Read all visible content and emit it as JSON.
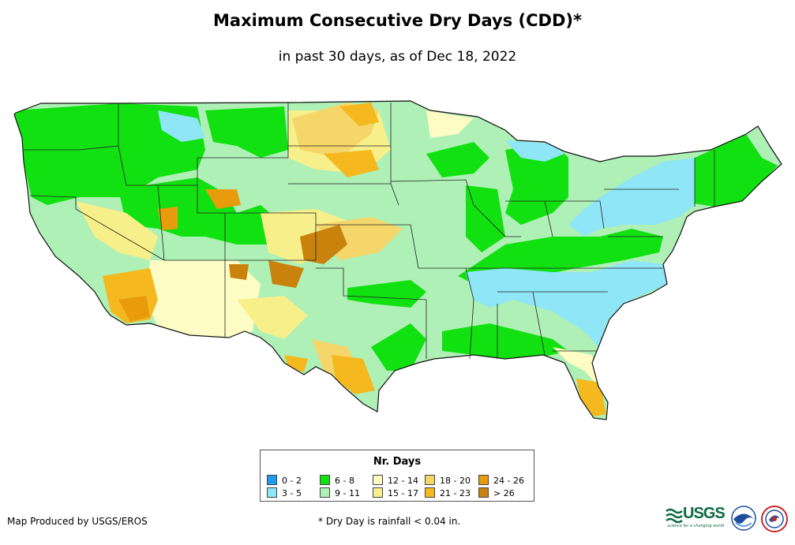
{
  "title": "Maximum Consecutive Dry Days (CDD)*",
  "subtitle": "in past 30 days, as of Dec 18, 2022",
  "legend": {
    "title": "Nr. Days",
    "classes": [
      {
        "label": "0 - 2",
        "color": "#1e9bef"
      },
      {
        "label": "3 - 5",
        "color": "#8ee6f7"
      },
      {
        "label": "6 - 8",
        "color": "#11e011"
      },
      {
        "label": "9 - 11",
        "color": "#aef0b6"
      },
      {
        "label": "12 - 14",
        "color": "#fcfcc4"
      },
      {
        "label": "15 - 17",
        "color": "#f7f08a"
      },
      {
        "label": "18 - 20",
        "color": "#f5d66a"
      },
      {
        "label": "21 - 23",
        "color": "#f5b81e"
      },
      {
        "label": "24 - 26",
        "color": "#e89c0c"
      },
      {
        "label": "> 26",
        "color": "#c9820c"
      }
    ]
  },
  "credit": "Map Produced by USGS/EROS",
  "footnote": "* Dry Day is rainfall < 0.04 in.",
  "logos": {
    "usgs": "USGS",
    "usgs_tagline": "science for a changing world",
    "noaa": "noaa-logo-icon",
    "nws": "nws-logo-icon"
  }
}
